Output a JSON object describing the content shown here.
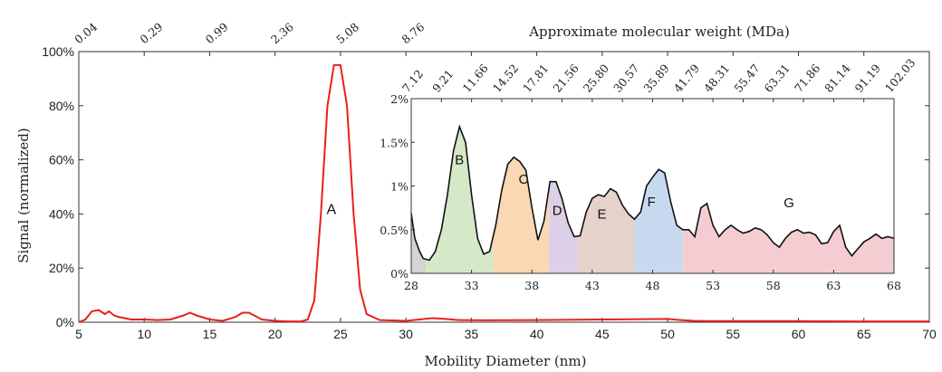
{
  "chart_data": [
    {
      "type": "line",
      "title": "",
      "xlabel": "Mobility Diameter (nm)",
      "ylabel": "Signal (normalized)",
      "x2label": "Approximate molecular weight (MDa)",
      "xlim": [
        5,
        70
      ],
      "ylim": [
        0,
        100
      ],
      "xticks": [
        "5",
        "10",
        "15",
        "20",
        "25",
        "30",
        "35",
        "40",
        "45",
        "50",
        "55",
        "60",
        "65",
        "70"
      ],
      "yticks": [
        "0%",
        "20%",
        "40%",
        "60%",
        "80%",
        "100%"
      ],
      "top_axis": {
        "positions": [
          5,
          10,
          15,
          20,
          25,
          30
        ],
        "labels": [
          "0.04",
          "0.29",
          "0.99",
          "2.36",
          "5.08",
          "8.76"
        ]
      },
      "color": "#e8201c",
      "series": [
        {
          "x": [
            5,
            5.5,
            6,
            6.5,
            7,
            7.3,
            7.7,
            8,
            9,
            10,
            11,
            12,
            13,
            13.5,
            14,
            15,
            16,
            17,
            17.5,
            18,
            19,
            20,
            21,
            22,
            22.5,
            23,
            23.5,
            24,
            24.5,
            25,
            25.5,
            26,
            26.5,
            27,
            28,
            30,
            31,
            32,
            33,
            34,
            36,
            40,
            45,
            50,
            51,
            52,
            53,
            55,
            60,
            65,
            70
          ],
          "y": [
            0,
            1,
            4,
            4.5,
            3,
            4,
            2.5,
            2,
            1,
            1,
            0.8,
            1,
            2.5,
            3.5,
            2.5,
            1,
            0.5,
            2,
            3.5,
            3.5,
            1,
            0.5,
            0.3,
            0.3,
            1,
            8,
            40,
            80,
            95,
            95,
            80,
            40,
            12,
            3,
            0.8,
            0.5,
            1,
            1.5,
            1.2,
            0.8,
            0.7,
            0.8,
            1,
            1.2,
            0.8,
            0.5,
            0.4,
            0.4,
            0.4,
            0.3,
            0.3
          ]
        }
      ],
      "annotations": [
        {
          "text": "A",
          "x": 24.3,
          "y": 40
        }
      ]
    },
    {
      "type": "area",
      "title": "",
      "xlabel": "",
      "ylabel": "",
      "xlim": [
        28,
        68
      ],
      "ylim": [
        0,
        2
      ],
      "xticks": [
        "28",
        "33",
        "38",
        "43",
        "48",
        "53",
        "58",
        "63",
        "68"
      ],
      "yticks": [
        "0%",
        "0.5%",
        "1%",
        "1.5%",
        "2%"
      ],
      "top_axis": {
        "labels": [
          "7.12",
          "9.21",
          "11.66",
          "14.52",
          "17.81",
          "21.56",
          "25.80",
          "30.57",
          "35.89",
          "41.79",
          "48.31",
          "55.47",
          "63.31",
          "71.86",
          "81.14",
          "91.19",
          "102.03"
        ]
      },
      "x": [
        28,
        28.3,
        28.7,
        29,
        29.5,
        30,
        30.5,
        31,
        31.5,
        32,
        32.5,
        33,
        33.5,
        34,
        34.5,
        35,
        35.5,
        36,
        36.5,
        37,
        37.5,
        38,
        38.5,
        39,
        39.5,
        40,
        40.5,
        41,
        41.5,
        42,
        42.5,
        43,
        43.5,
        44,
        44.5,
        45,
        45.5,
        46,
        46.5,
        47,
        47.5,
        48,
        48.5,
        49,
        49.5,
        50,
        50.5,
        51,
        51.5,
        52,
        52.5,
        53,
        53.5,
        54,
        54.5,
        55,
        55.5,
        56,
        56.5,
        57,
        57.5,
        58,
        58.5,
        59,
        59.5,
        60,
        60.5,
        61,
        61.5,
        62,
        62.5,
        63,
        63.5,
        64,
        64.5,
        65,
        65.5,
        66,
        66.5,
        67,
        67.5,
        68
      ],
      "y": [
        0.69,
        0.4,
        0.25,
        0.17,
        0.15,
        0.25,
        0.5,
        0.9,
        1.4,
        1.68,
        1.5,
        0.9,
        0.4,
        0.22,
        0.25,
        0.55,
        0.95,
        1.25,
        1.33,
        1.28,
        1.18,
        0.75,
        0.38,
        0.6,
        1.05,
        1.05,
        0.85,
        0.58,
        0.42,
        0.43,
        0.7,
        0.86,
        0.9,
        0.88,
        0.97,
        0.93,
        0.78,
        0.68,
        0.62,
        0.7,
        1.0,
        1.1,
        1.19,
        1.15,
        0.82,
        0.55,
        0.5,
        0.5,
        0.42,
        0.75,
        0.8,
        0.55,
        0.42,
        0.5,
        0.55,
        0.5,
        0.46,
        0.48,
        0.52,
        0.5,
        0.44,
        0.35,
        0.3,
        0.4,
        0.47,
        0.5,
        0.46,
        0.47,
        0.44,
        0.34,
        0.35,
        0.48,
        0.55,
        0.3,
        0.2,
        0.28,
        0.36,
        0.4,
        0.45,
        0.4,
        0.42,
        0.4
      ],
      "regions": [
        {
          "label": "",
          "from": 28,
          "to": 29.2,
          "color": "#d4d4d4"
        },
        {
          "label": "B",
          "from": 29.2,
          "to": 34.8,
          "color": "#d5e8c8"
        },
        {
          "label": "C",
          "from": 34.8,
          "to": 39.4,
          "color": "#fbd7b3"
        },
        {
          "label": "D",
          "from": 39.4,
          "to": 41.8,
          "color": "#dcd0e6"
        },
        {
          "label": "E",
          "from": 41.8,
          "to": 46.5,
          "color": "#e6d2cb"
        },
        {
          "label": "F",
          "from": 46.5,
          "to": 50.5,
          "color": "#c7d9ee"
        },
        {
          "label": "G",
          "from": 50.5,
          "to": 68,
          "color": "#f3cdd1"
        }
      ],
      "region_label_positions": [
        {
          "label": "B",
          "x": 32,
          "y": 1.3
        },
        {
          "label": "C",
          "x": 37.3,
          "y": 1.08
        },
        {
          "label": "D",
          "x": 40.1,
          "y": 0.72
        },
        {
          "label": "E",
          "x": 43.8,
          "y": 0.68
        },
        {
          "label": "F",
          "x": 47.9,
          "y": 0.82
        },
        {
          "label": "G",
          "x": 59.3,
          "y": 0.81
        }
      ]
    }
  ]
}
